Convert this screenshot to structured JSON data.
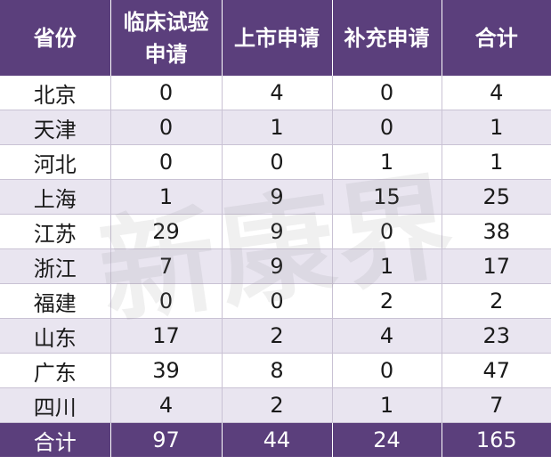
{
  "table": {
    "headers": [
      "省份",
      "临床试验申请",
      "上市申请",
      "补充申请",
      "合计"
    ],
    "rows": [
      {
        "province": "北京",
        "clinical": "0",
        "market": "4",
        "supplement": "0",
        "total": "4"
      },
      {
        "province": "天津",
        "clinical": "0",
        "market": "1",
        "supplement": "0",
        "total": "1"
      },
      {
        "province": "河北",
        "clinical": "0",
        "market": "0",
        "supplement": "1",
        "total": "1"
      },
      {
        "province": "上海",
        "clinical": "1",
        "market": "9",
        "supplement": "15",
        "total": "25"
      },
      {
        "province": "江苏",
        "clinical": "29",
        "market": "9",
        "supplement": "0",
        "total": "38"
      },
      {
        "province": "浙江",
        "clinical": "7",
        "market": "9",
        "supplement": "1",
        "total": "17"
      },
      {
        "province": "福建",
        "clinical": "0",
        "market": "0",
        "supplement": "2",
        "total": "2"
      },
      {
        "province": "山东",
        "clinical": "17",
        "market": "2",
        "supplement": "4",
        "total": "23"
      },
      {
        "province": "广东",
        "clinical": "39",
        "market": "8",
        "supplement": "0",
        "total": "47"
      },
      {
        "province": "四川",
        "clinical": "4",
        "market": "2",
        "supplement": "1",
        "total": "7"
      }
    ],
    "footer": {
      "label": "合计",
      "clinical": "97",
      "market": "44",
      "supplement": "24",
      "total": "165"
    }
  },
  "watermark": "新康界",
  "colors": {
    "header_bg": "#5b3f7c",
    "header_text": "#ffffff",
    "row_alt_bg": "#e9e5f0",
    "row_bg": "#ffffff",
    "grid_line": "#c9c2d4"
  }
}
